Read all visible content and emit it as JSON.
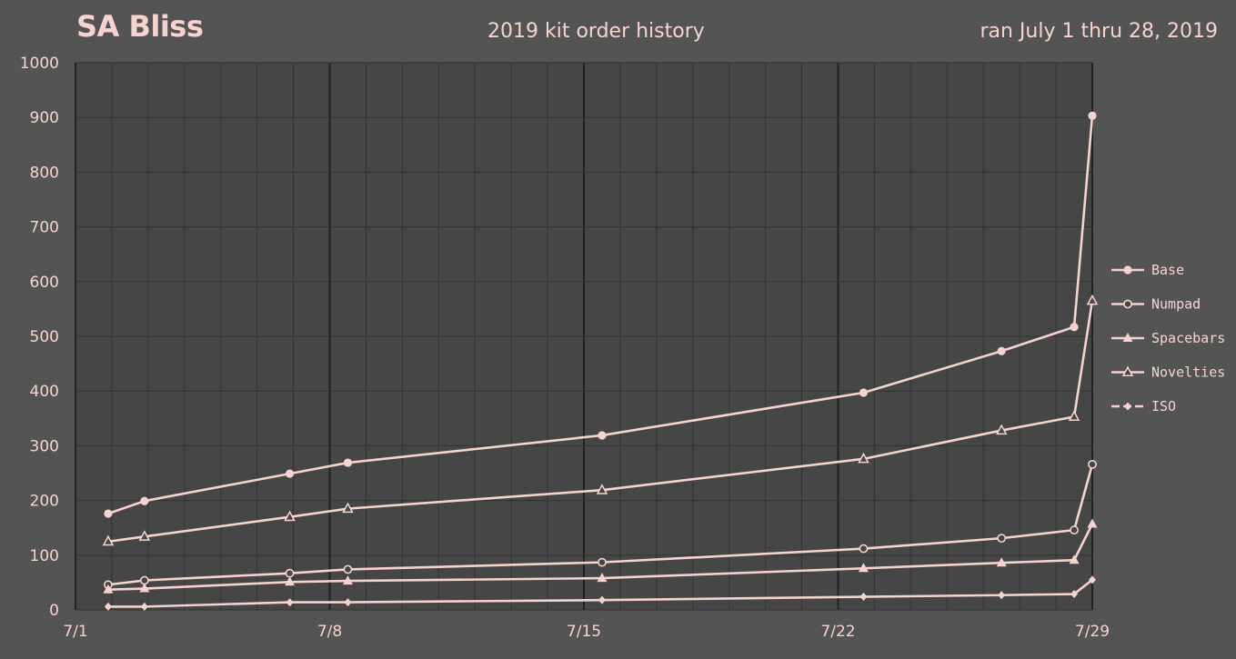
{
  "header": {
    "brand": "SA Bliss",
    "subtitle": "2019 kit order history",
    "date_range": "ran July 1 thru 28, 2019"
  },
  "colors": {
    "background": "#545454",
    "plot_background": "#464646",
    "grid_minor": "#333333",
    "grid_major": "#222222",
    "series": "#f6d3ce"
  },
  "chart_data": {
    "type": "line",
    "title": "2019 kit order history",
    "xlabel": "",
    "ylabel": "",
    "x_axis": {
      "min": 0,
      "max": 28,
      "ticks": [
        {
          "value": 0,
          "label": "7/1"
        },
        {
          "value": 7,
          "label": "7/8"
        },
        {
          "value": 14,
          "label": "7/15"
        },
        {
          "value": 21,
          "label": "7/22"
        },
        {
          "value": 28,
          "label": "7/29"
        }
      ]
    },
    "ylim": [
      0,
      1000
    ],
    "y_ticks": [
      0,
      100,
      200,
      300,
      400,
      500,
      600,
      700,
      800,
      900,
      1000
    ],
    "grid": true,
    "legend_position": "right",
    "x": [
      0.9,
      1.9,
      5.9,
      7.5,
      14.5,
      21.7,
      25.5,
      27.5,
      28.0
    ],
    "series": [
      {
        "name": "Base",
        "marker": "filled-circle",
        "values": [
          176,
          199,
          249,
          269,
          319,
          397,
          473,
          517,
          903
        ]
      },
      {
        "name": "Numpad",
        "marker": "open-circle",
        "values": [
          46,
          54,
          67,
          74,
          87,
          112,
          131,
          146,
          266
        ]
      },
      {
        "name": "Spacebars",
        "marker": "filled-triangle",
        "values": [
          37,
          39,
          51,
          53,
          58,
          76,
          86,
          91,
          157
        ]
      },
      {
        "name": "Novelties",
        "marker": "open-triangle",
        "values": [
          125,
          134,
          170,
          185,
          219,
          276,
          328,
          353,
          565
        ]
      },
      {
        "name": "ISO",
        "marker": "diamond",
        "values": [
          6,
          6,
          14,
          14,
          18,
          24,
          27,
          29,
          55
        ]
      }
    ]
  }
}
